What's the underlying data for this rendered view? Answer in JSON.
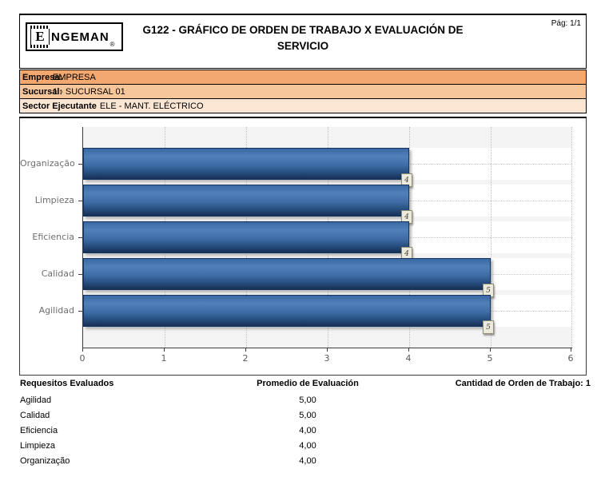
{
  "header": {
    "logo": {
      "e": "E",
      "name": "NGEMAN",
      "reg": "®"
    },
    "title_line1": "G122 - GRÁFICO DE ORDEN DE TRABAJO X EVALUACIÓN DE",
    "title_line2": "SERVICIO",
    "page_label": "Pág: 1/1"
  },
  "info_rows": [
    {
      "label": "Empresa:",
      "value": "EMPRESA"
    },
    {
      "label": "Sucursal:",
      "value": "1 - SUCURSAL 01"
    },
    {
      "label": "Sector Ejecutante",
      "value": "ELE - MANT. ELÉCTRICO"
    }
  ],
  "chart_data": {
    "type": "bar",
    "orientation": "horizontal",
    "categories": [
      "Organização",
      "Limpieza",
      "Eficiencia",
      "Calidad",
      "Agilidad"
    ],
    "values": [
      4,
      4,
      4,
      5,
      5
    ],
    "xlim": [
      0,
      6
    ],
    "x_tick_labels": [
      "0",
      "1",
      "2",
      "3",
      "4",
      "5",
      "6"
    ],
    "grid": "dotted",
    "legend": "none",
    "bars": [
      {
        "label": "Organização",
        "value": 4,
        "display": "4",
        "width_pct": "66.667%"
      },
      {
        "label": "Limpieza",
        "value": 4,
        "display": "4",
        "width_pct": "66.667%"
      },
      {
        "label": "Eficiencia",
        "value": 4,
        "display": "4",
        "width_pct": "66.667%"
      },
      {
        "label": "Calidad",
        "value": 5,
        "display": "5",
        "width_pct": "83.333%"
      },
      {
        "label": "Agilidad",
        "value": 5,
        "display": "5",
        "width_pct": "83.333%"
      }
    ]
  },
  "table": {
    "headers": {
      "requirements": "Requesitos Evaluados",
      "average": "Promedio de Evaluación",
      "count": "Cantidad de Orden de Trabajo: 1"
    },
    "rows": [
      {
        "name": "Agilidad",
        "avg": "5,00"
      },
      {
        "name": "Calidad",
        "avg": "5,00"
      },
      {
        "name": "Eficiencia",
        "avg": "4,00"
      },
      {
        "name": "Limpieza",
        "avg": "4,00"
      },
      {
        "name": "Organização",
        "avg": "4,00"
      }
    ]
  },
  "colors": {
    "row_empresa_bg": "#F3A86F",
    "row_sucursal_bg": "#F7C69B",
    "row_sector_bg": "#FBE7D3",
    "bar_fill": "#3f6ca6",
    "bar_border": "#16355f",
    "value_box_bg": "#EDEADC"
  }
}
